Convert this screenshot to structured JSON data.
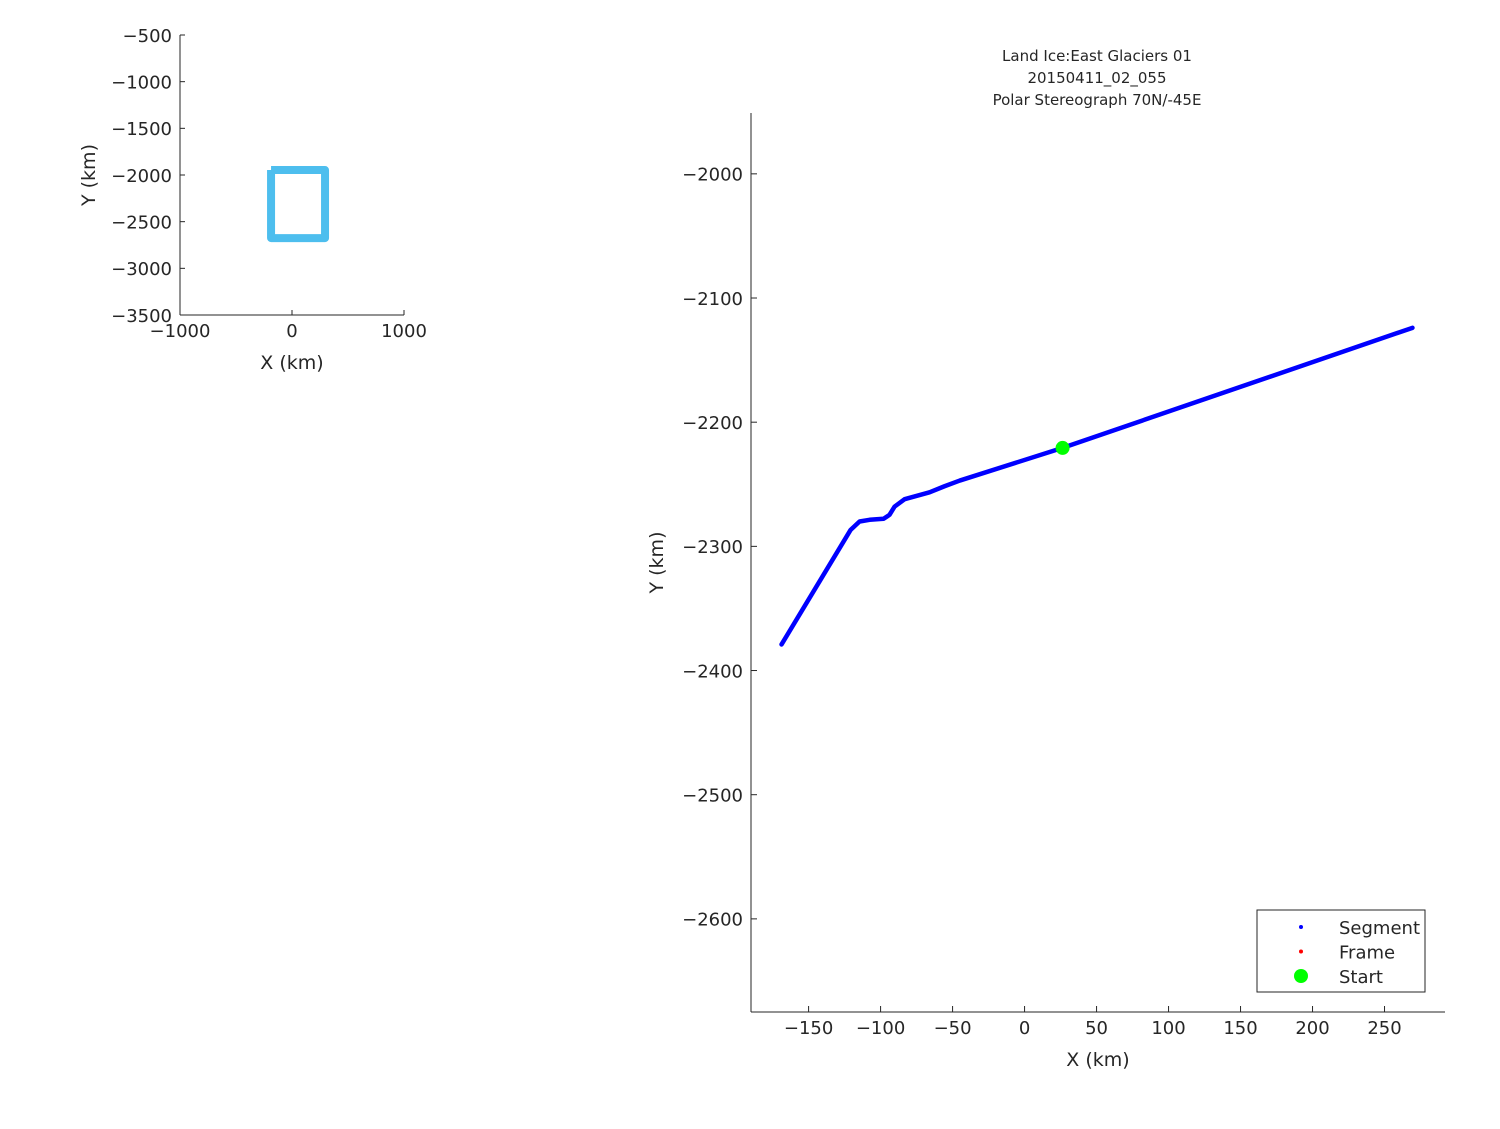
{
  "chart_data": [
    {
      "type": "line",
      "title": "",
      "xlabel": "X (km)",
      "ylabel": "Y (km)",
      "xlim": [
        -1000,
        1000
      ],
      "ylim": [
        -3500,
        -500
      ],
      "xticks": [
        -1000,
        0,
        1000
      ],
      "yticks": [
        -500,
        -1000,
        -1500,
        -2000,
        -2500,
        -3000,
        -3500
      ],
      "grid": false,
      "series": [
        {
          "color": "#4DBEEE",
          "x": [
            -187,
            295,
            295,
            -187,
            -187
          ],
          "y": [
            -1947,
            -1947,
            -2676,
            -2676,
            -1947
          ]
        }
      ]
    },
    {
      "type": "line",
      "title": [
        "Land Ice:East Glaciers 01",
        "20150411_02_055",
        "Polar Stereograph 70N/-45E"
      ],
      "xlabel": "X (km)",
      "ylabel": "Y (km)",
      "xlim": [
        -190,
        292
      ],
      "ylim": [
        -2675,
        -1951
      ],
      "xticks": [
        -150,
        -100,
        -50,
        0,
        50,
        100,
        150,
        200,
        250
      ],
      "yticks": [
        -2000,
        -2100,
        -2200,
        -2300,
        -2400,
        -2500,
        -2600
      ],
      "grid": false,
      "legend_position": "bottom-right",
      "series": [
        {
          "name": "Segment",
          "color": "#0000FF",
          "x": [
            -168.8,
            -120.8,
            -114.6,
            -107.6,
            -97.9,
            -93.8,
            -90.3,
            -83.3,
            -66,
            -55.6,
            -45,
            26.4,
            269.4
          ],
          "y": [
            -2379,
            -2286.7,
            -2280,
            -2278.6,
            -2277.8,
            -2274.6,
            -2268,
            -2262,
            -2256.5,
            -2251.6,
            -2247,
            -2220.7,
            -2124
          ]
        },
        {
          "name": "Frame",
          "color": "#FF0000",
          "x": [],
          "y": []
        },
        {
          "name": "Start",
          "color": "#00FF00",
          "x": [
            26.4
          ],
          "y": [
            -2220.7
          ]
        }
      ]
    }
  ]
}
